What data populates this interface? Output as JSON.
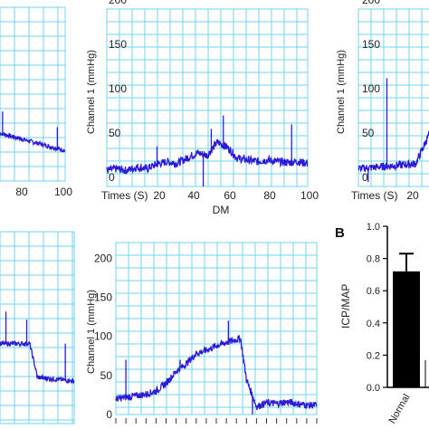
{
  "chart_data": [
    {
      "id": "p1",
      "type": "line",
      "ylabel": "",
      "xlabel": "",
      "x_ticks": [
        "80",
        "100"
      ],
      "y_ticks": [],
      "series_color": "#2b1bd6",
      "grid_color": "#6fd6ee"
    },
    {
      "id": "p2",
      "type": "line",
      "caption": "DM",
      "xlabel": "Times (S)",
      "ylabel": "Channel 1 (mmHg)",
      "xlim": [
        0,
        100
      ],
      "ylim": [
        0,
        200
      ],
      "x_ticks": [
        "20",
        "40",
        "60",
        "80",
        "100"
      ],
      "y_ticks": [
        "0",
        "50",
        "100",
        "150",
        "200"
      ],
      "series": [
        {
          "x": [
            0,
            5,
            10,
            15,
            20,
            25,
            30,
            35,
            40,
            45,
            50,
            55,
            60,
            65,
            70,
            75,
            80,
            85,
            90,
            95,
            100
          ],
          "y": [
            18,
            20,
            18,
            22,
            20,
            25,
            28,
            26,
            32,
            38,
            35,
            50,
            44,
            32,
            30,
            28,
            30,
            28,
            27,
            28,
            26
          ]
        }
      ],
      "series_color": "#2b1bd6",
      "grid_color": "#6fd6ee"
    },
    {
      "id": "p3",
      "type": "line",
      "xlabel": "Times (S)",
      "ylabel": "Channel 1 (mmHg)",
      "x_ticks": [
        "20"
      ],
      "y_ticks": [
        "0",
        "50",
        "100",
        "150",
        "200"
      ],
      "series_color": "#2b1bd6",
      "grid_color": "#6fd6ee"
    },
    {
      "id": "p4",
      "type": "line",
      "x_ticks": [],
      "y_ticks": [],
      "series_color": "#2b1bd6",
      "grid_color": "#6fd6ee"
    },
    {
      "id": "p5",
      "type": "line",
      "ylabel": "Channel 1 (mmHg)",
      "xlim": [
        0,
        100
      ],
      "ylim": [
        0,
        200
      ],
      "x_ticks": [],
      "y_ticks": [
        "0",
        "50",
        "100",
        "150",
        "200"
      ],
      "series": [
        {
          "x": [
            0,
            5,
            10,
            15,
            20,
            25,
            30,
            35,
            40,
            45,
            50,
            55,
            60,
            62,
            65,
            70,
            75,
            80,
            85,
            90,
            95,
            100
          ],
          "y": [
            20,
            22,
            24,
            26,
            30,
            40,
            55,
            65,
            78,
            82,
            88,
            92,
            96,
            98,
            45,
            10,
            15,
            14,
            16,
            14,
            12,
            12
          ]
        }
      ],
      "series_color": "#2b1bd6",
      "grid_color": "#6fd6ee"
    },
    {
      "id": "pB",
      "type": "bar",
      "panel_label": "B",
      "ylabel": "ICP/MAP",
      "categories": [
        "Normal"
      ],
      "values": [
        0.72
      ],
      "errors": [
        0.11
      ],
      "ylim": [
        0,
        1.0
      ],
      "y_ticks": [
        "0.0",
        "0.2",
        "0.4",
        "0.6",
        "0.8",
        "1.0"
      ],
      "bar_color": "#000000"
    }
  ]
}
